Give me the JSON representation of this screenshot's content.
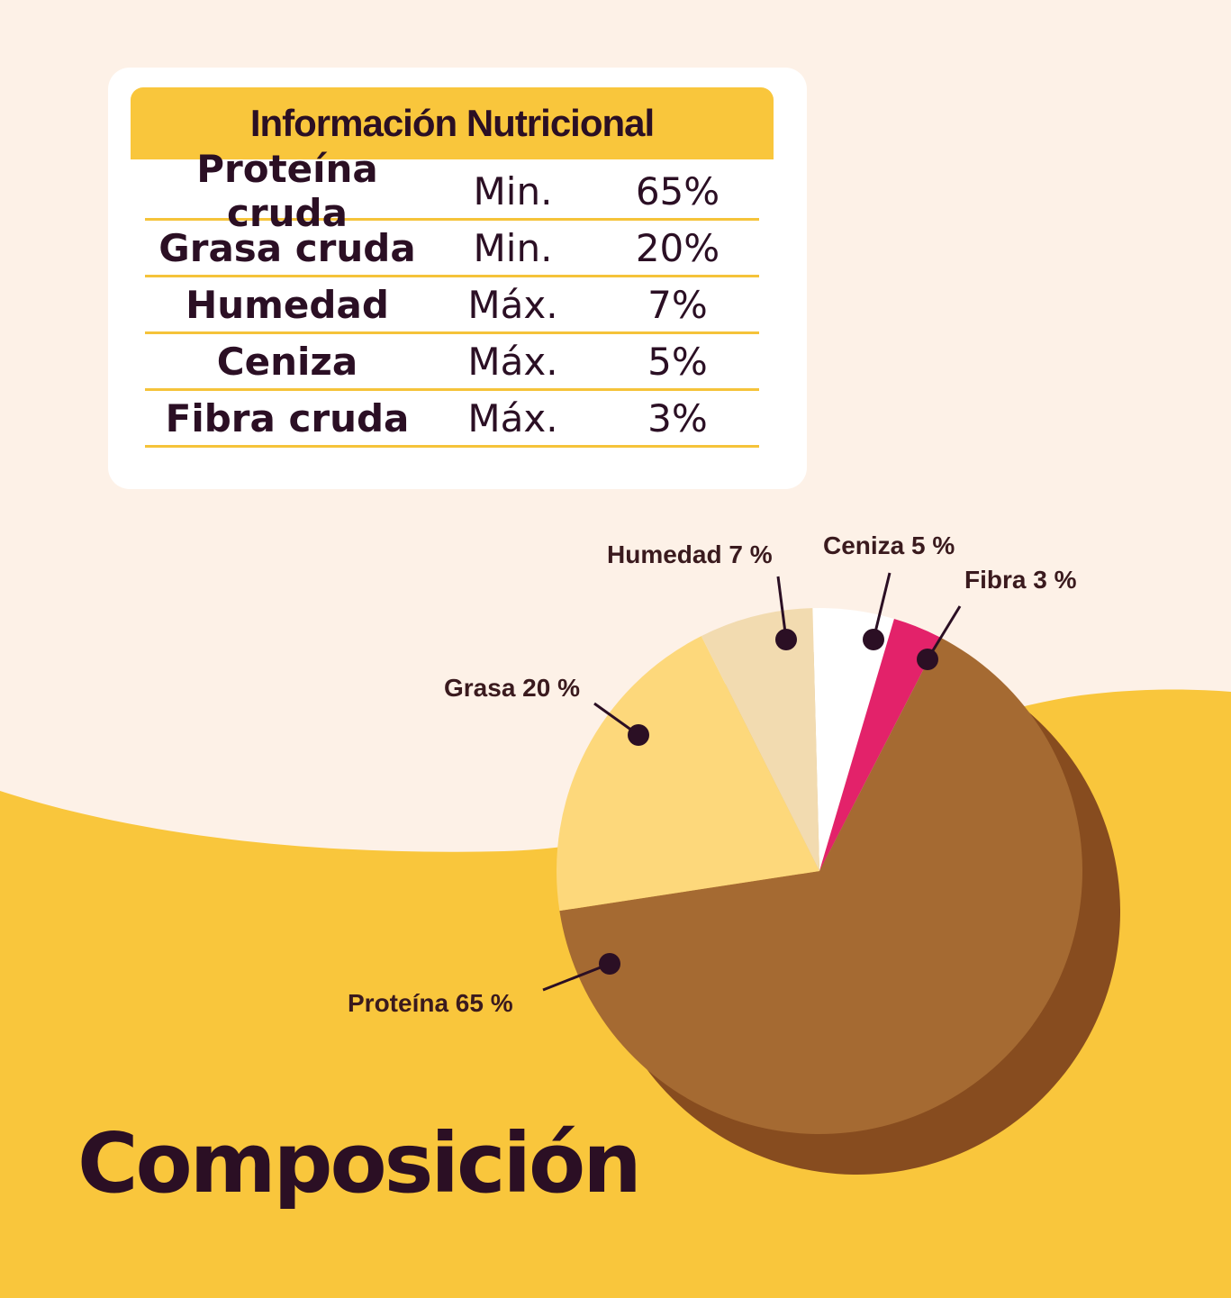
{
  "colors": {
    "background_top": "#fdf1e7",
    "background_wave": "#f9c63c",
    "header": "#f9c63c",
    "text_dark": "#2b0f24"
  },
  "table": {
    "title": "Información Nutricional",
    "rows": [
      {
        "name": "Proteína cruda",
        "kind": "Min.",
        "value": "65%"
      },
      {
        "name": "Grasa cruda",
        "kind": "Min.",
        "value": "20%"
      },
      {
        "name": "Humedad",
        "kind": "Máx.",
        "value": "7%"
      },
      {
        "name": "Ceniza",
        "kind": "Máx.",
        "value": "5%"
      },
      {
        "name": "Fibra cruda",
        "kind": "Máx.",
        "value": "3%"
      }
    ]
  },
  "chart_data": {
    "type": "pie",
    "title": "Composición",
    "slices": [
      {
        "label": "Proteína 65 %",
        "value": 65,
        "color": "#a56a32",
        "side": "#874c1f"
      },
      {
        "label": "Grasa 20 %",
        "value": 20,
        "color": "#fdd87b",
        "side": "#e7b94d"
      },
      {
        "label": "Humedad 7 %",
        "value": 7,
        "color": "#f2dbb0",
        "side": "#d9bf8d"
      },
      {
        "label": "Ceniza 5 %",
        "value": 5,
        "color": "#ffffff",
        "side": "#e9e2d8"
      },
      {
        "label": "Fibra 3 %",
        "value": 3,
        "color": "#e3226a",
        "side": "#b5154f"
      }
    ]
  }
}
